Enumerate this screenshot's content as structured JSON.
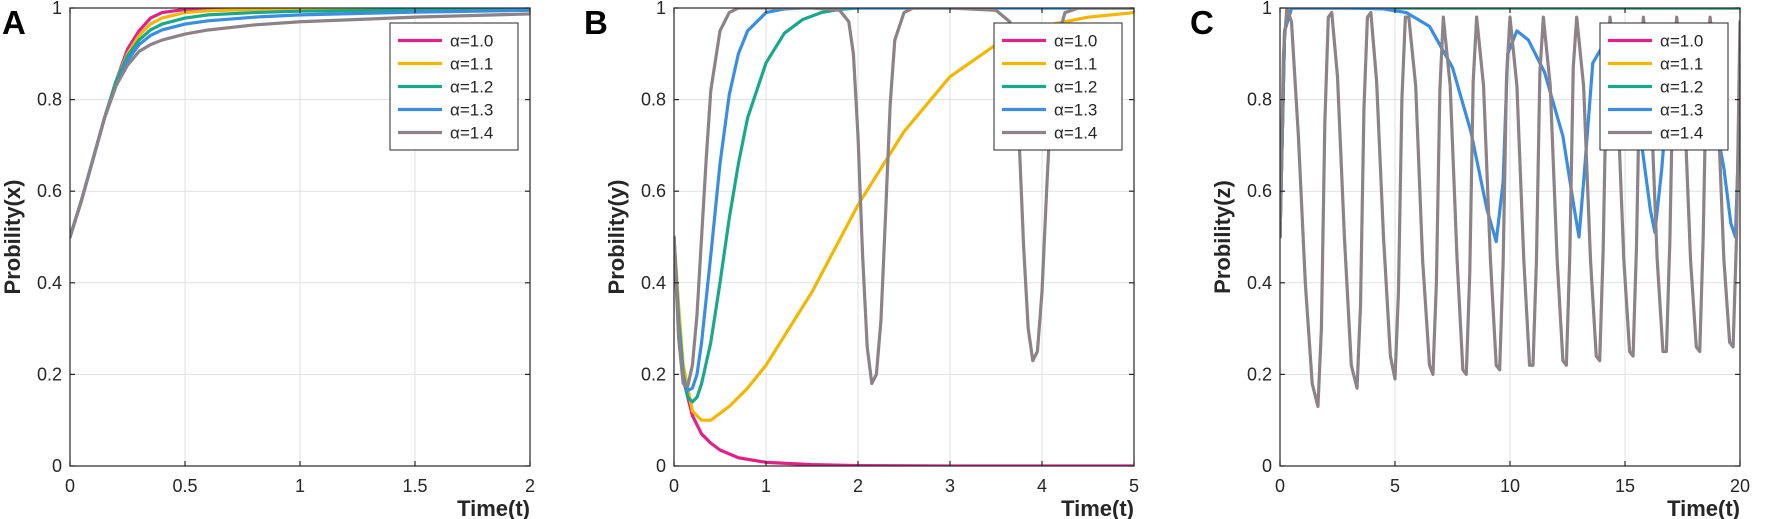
{
  "figure": {
    "letters": [
      "A",
      "B",
      "C"
    ]
  },
  "chart_data": [
    {
      "type": "line",
      "panel": "A",
      "xlabel": "Time(t)",
      "ylabel": "Probility(x)",
      "xlim": [
        0,
        2
      ],
      "ylim": [
        0,
        1
      ],
      "xticks": [
        0,
        0.5,
        1,
        1.5,
        2
      ],
      "xtick_labels": [
        "0",
        "0.5",
        "1",
        "1.5",
        "2"
      ],
      "yticks": [
        0,
        0.2,
        0.4,
        0.6,
        0.8,
        1
      ],
      "ytick_labels": [
        "0",
        "0.2",
        "0.4",
        "0.6",
        "0.8",
        "1"
      ],
      "grid": true,
      "legend_position": "top-right",
      "series": [
        {
          "name": "α=1.0",
          "color": "#e0218a",
          "x": [
            0,
            0.05,
            0.1,
            0.15,
            0.2,
            0.25,
            0.3,
            0.35,
            0.4,
            0.5,
            0.6,
            0.8,
            1.0,
            1.5,
            2.0
          ],
          "y": [
            0.5,
            0.58,
            0.67,
            0.76,
            0.84,
            0.91,
            0.95,
            0.978,
            0.99,
            0.997,
            0.999,
            1,
            1,
            1,
            1
          ]
        },
        {
          "name": "α=1.1",
          "color": "#f2b705",
          "x": [
            0,
            0.05,
            0.1,
            0.15,
            0.2,
            0.25,
            0.3,
            0.35,
            0.4,
            0.5,
            0.6,
            0.8,
            1.0,
            1.5,
            2.0
          ],
          "y": [
            0.5,
            0.58,
            0.67,
            0.76,
            0.84,
            0.9,
            0.94,
            0.965,
            0.978,
            0.99,
            0.994,
            0.997,
            0.998,
            0.999,
            1
          ]
        },
        {
          "name": "α=1.2",
          "color": "#1aa88c",
          "x": [
            0,
            0.05,
            0.1,
            0.15,
            0.2,
            0.25,
            0.3,
            0.35,
            0.4,
            0.5,
            0.6,
            0.8,
            1.0,
            1.5,
            2.0
          ],
          "y": [
            0.5,
            0.58,
            0.67,
            0.76,
            0.84,
            0.895,
            0.93,
            0.952,
            0.965,
            0.978,
            0.985,
            0.99,
            0.993,
            0.996,
            0.998
          ]
        },
        {
          "name": "α=1.3",
          "color": "#3a8ee0",
          "x": [
            0,
            0.05,
            0.1,
            0.15,
            0.2,
            0.25,
            0.3,
            0.35,
            0.4,
            0.5,
            0.6,
            0.8,
            1.0,
            1.5,
            2.0
          ],
          "y": [
            0.5,
            0.58,
            0.67,
            0.76,
            0.83,
            0.885,
            0.92,
            0.94,
            0.952,
            0.965,
            0.972,
            0.98,
            0.985,
            0.991,
            0.995
          ]
        },
        {
          "name": "α=1.4",
          "color": "#8c8287",
          "x": [
            0,
            0.05,
            0.1,
            0.15,
            0.2,
            0.25,
            0.3,
            0.35,
            0.4,
            0.5,
            0.6,
            0.8,
            1.0,
            1.5,
            2.0
          ],
          "y": [
            0.5,
            0.58,
            0.67,
            0.76,
            0.83,
            0.875,
            0.905,
            0.92,
            0.93,
            0.943,
            0.952,
            0.963,
            0.97,
            0.98,
            0.987
          ]
        }
      ]
    },
    {
      "type": "line",
      "panel": "B",
      "xlabel": "Time(t)",
      "ylabel": "Probility(y)",
      "xlim": [
        0,
        5
      ],
      "ylim": [
        0,
        1
      ],
      "xticks": [
        0,
        1,
        2,
        3,
        4,
        5
      ],
      "xtick_labels": [
        "0",
        "1",
        "2",
        "3",
        "4",
        "5"
      ],
      "yticks": [
        0,
        0.2,
        0.4,
        0.6,
        0.8,
        1
      ],
      "ytick_labels": [
        "0",
        "0.2",
        "0.4",
        "0.6",
        "0.8",
        "1"
      ],
      "grid": true,
      "legend_position": "top-right",
      "series": [
        {
          "name": "α=1.0",
          "color": "#e0218a",
          "x": [
            0,
            0.05,
            0.1,
            0.2,
            0.3,
            0.4,
            0.5,
            0.7,
            1.0,
            1.5,
            2.0,
            3.0,
            5.0
          ],
          "y": [
            0.5,
            0.3,
            0.19,
            0.11,
            0.07,
            0.05,
            0.035,
            0.018,
            0.008,
            0.003,
            0.001,
            0,
            0
          ]
        },
        {
          "name": "α=1.1",
          "color": "#f2b705",
          "x": [
            0,
            0.05,
            0.1,
            0.2,
            0.3,
            0.4,
            0.6,
            0.8,
            1.0,
            1.5,
            2.0,
            2.5,
            3.0,
            3.5,
            4.0,
            4.5,
            5.0
          ],
          "y": [
            0.5,
            0.35,
            0.22,
            0.12,
            0.1,
            0.1,
            0.13,
            0.17,
            0.22,
            0.38,
            0.57,
            0.73,
            0.85,
            0.92,
            0.96,
            0.98,
            0.99
          ]
        },
        {
          "name": "α=1.2",
          "color": "#1aa88c",
          "x": [
            0,
            0.05,
            0.1,
            0.15,
            0.2,
            0.25,
            0.3,
            0.4,
            0.5,
            0.6,
            0.7,
            0.8,
            1.0,
            1.2,
            1.4,
            1.6,
            1.8,
            2.0,
            3.0,
            5.0
          ],
          "y": [
            0.5,
            0.32,
            0.2,
            0.15,
            0.14,
            0.15,
            0.18,
            0.27,
            0.4,
            0.54,
            0.66,
            0.76,
            0.88,
            0.945,
            0.975,
            0.99,
            0.997,
            1,
            1,
            1
          ]
        },
        {
          "name": "α=1.3",
          "color": "#3a8ee0",
          "x": [
            0,
            0.05,
            0.1,
            0.15,
            0.2,
            0.25,
            0.3,
            0.4,
            0.5,
            0.6,
            0.7,
            0.8,
            1.0,
            1.2,
            1.4,
            2.0,
            3.0,
            5.0
          ],
          "y": [
            0.5,
            0.3,
            0.19,
            0.165,
            0.17,
            0.2,
            0.27,
            0.46,
            0.66,
            0.81,
            0.9,
            0.95,
            0.99,
            0.998,
            1,
            1,
            1,
            1
          ]
        },
        {
          "name": "α=1.4",
          "color": "#8c8287",
          "x": [
            0,
            0.05,
            0.1,
            0.15,
            0.2,
            0.25,
            0.3,
            0.35,
            0.4,
            0.5,
            0.6,
            0.7,
            0.8,
            0.9,
            1.0,
            1.5,
            1.8,
            1.9,
            1.95,
            2.0,
            2.05,
            2.1,
            2.15,
            2.2,
            2.25,
            2.3,
            2.35,
            2.4,
            2.5,
            2.6,
            3.0,
            3.5,
            3.65,
            3.7,
            3.75,
            3.8,
            3.85,
            3.9,
            3.95,
            4.0,
            4.05,
            4.1,
            4.15,
            4.25,
            4.4,
            5.0
          ],
          "y": [
            0.5,
            0.28,
            0.18,
            0.175,
            0.22,
            0.33,
            0.5,
            0.67,
            0.82,
            0.95,
            0.99,
            1,
            1,
            1,
            1,
            1,
            0.995,
            0.97,
            0.9,
            0.72,
            0.46,
            0.26,
            0.18,
            0.2,
            0.32,
            0.55,
            0.79,
            0.93,
            0.99,
            1,
            1,
            0.995,
            0.97,
            0.9,
            0.72,
            0.48,
            0.3,
            0.23,
            0.25,
            0.38,
            0.6,
            0.8,
            0.92,
            0.99,
            1,
            1
          ]
        }
      ]
    },
    {
      "type": "line",
      "panel": "C",
      "xlabel": "Time(t)",
      "ylabel": "Probility(z)",
      "xlim": [
        0,
        20
      ],
      "ylim": [
        0,
        1
      ],
      "xticks": [
        0,
        5,
        10,
        15,
        20
      ],
      "xtick_labels": [
        "0",
        "5",
        "10",
        "15",
        "20"
      ],
      "yticks": [
        0,
        0.2,
        0.4,
        0.6,
        0.8,
        1
      ],
      "ytick_labels": [
        "0",
        "0.2",
        "0.4",
        "0.6",
        "0.8",
        "1"
      ],
      "grid": true,
      "legend_position": "top-right",
      "series": [
        {
          "name": "α=1.0",
          "color": "#e0218a",
          "x": [
            0,
            0.2,
            0.5,
            20
          ],
          "y": [
            0.5,
            0.95,
            1,
            1
          ]
        },
        {
          "name": "α=1.1",
          "color": "#f2b705",
          "x": [
            0,
            0.2,
            0.5,
            20
          ],
          "y": [
            0.5,
            0.95,
            1,
            1
          ]
        },
        {
          "name": "α=1.2",
          "color": "#1aa88c",
          "x": [
            0,
            0.2,
            0.5,
            20
          ],
          "y": [
            0.5,
            0.95,
            1,
            1
          ]
        },
        {
          "name": "α=1.3",
          "color": "#3a8ee0",
          "x": [
            0,
            0.2,
            0.5,
            1,
            3,
            4.5,
            5.5,
            6.5,
            7.5,
            8.3,
            9.0,
            9.4,
            9.7,
            9.9,
            10.3,
            10.8,
            11.5,
            12.3,
            12.8,
            13.0,
            13.2,
            13.6,
            14.3,
            15.0,
            15.6,
            16.1,
            16.3,
            16.6,
            17.0,
            17.8,
            18.6,
            19.3,
            19.6,
            19.8,
            20
          ],
          "y": [
            0.5,
            0.95,
            1,
            1,
            1,
            0.998,
            0.99,
            0.96,
            0.87,
            0.73,
            0.56,
            0.49,
            0.62,
            0.9,
            0.95,
            0.93,
            0.86,
            0.72,
            0.56,
            0.5,
            0.62,
            0.88,
            0.94,
            0.9,
            0.75,
            0.56,
            0.51,
            0.65,
            0.9,
            0.93,
            0.84,
            0.65,
            0.53,
            0.5,
            0.8
          ]
        },
        {
          "name": "α=1.4",
          "color": "#8c8287",
          "x": [
            0,
            0.15,
            0.3,
            0.5,
            0.8,
            1.1,
            1.4,
            1.65,
            1.8,
            1.95,
            2.1,
            2.25,
            2.5,
            2.8,
            3.1,
            3.35,
            3.5,
            3.65,
            3.8,
            3.95,
            4.2,
            4.5,
            4.8,
            5.0,
            5.15,
            5.3,
            5.45,
            5.6,
            5.9,
            6.2,
            6.5,
            6.65,
            6.8,
            6.95,
            7.1,
            7.4,
            7.7,
            7.95,
            8.1,
            8.25,
            8.4,
            8.55,
            8.85,
            9.15,
            9.4,
            9.55,
            9.7,
            9.85,
            10.0,
            10.3,
            10.6,
            10.85,
            11.0,
            11.15,
            11.3,
            11.45,
            11.75,
            12.05,
            12.3,
            12.45,
            12.6,
            12.75,
            12.9,
            13.2,
            13.5,
            13.75,
            13.9,
            14.05,
            14.2,
            14.35,
            14.65,
            14.95,
            15.2,
            15.35,
            15.5,
            15.65,
            15.8,
            16.1,
            16.4,
            16.65,
            16.8,
            16.95,
            17.1,
            17.25,
            17.55,
            17.85,
            18.1,
            18.25,
            18.4,
            18.55,
            18.7,
            19.0,
            19.3,
            19.55,
            19.7,
            19.85,
            20.0
          ],
          "y": [
            0.5,
            0.9,
            1,
            0.97,
            0.72,
            0.4,
            0.18,
            0.13,
            0.3,
            0.75,
            0.98,
            0.99,
            0.85,
            0.5,
            0.22,
            0.17,
            0.35,
            0.78,
            0.98,
            0.99,
            0.84,
            0.5,
            0.24,
            0.19,
            0.38,
            0.8,
            0.98,
            0.98,
            0.83,
            0.45,
            0.22,
            0.2,
            0.4,
            0.82,
            0.98,
            0.83,
            0.45,
            0.21,
            0.2,
            0.42,
            0.84,
            0.98,
            0.83,
            0.45,
            0.22,
            0.21,
            0.44,
            0.85,
            0.98,
            0.83,
            0.45,
            0.22,
            0.22,
            0.45,
            0.86,
            0.98,
            0.83,
            0.45,
            0.23,
            0.22,
            0.46,
            0.87,
            0.98,
            0.83,
            0.45,
            0.24,
            0.23,
            0.47,
            0.87,
            0.98,
            0.83,
            0.45,
            0.25,
            0.24,
            0.48,
            0.88,
            0.98,
            0.83,
            0.45,
            0.25,
            0.25,
            0.49,
            0.88,
            0.98,
            0.83,
            0.45,
            0.26,
            0.25,
            0.5,
            0.89,
            0.98,
            0.83,
            0.45,
            0.27,
            0.26,
            0.5,
            0.97
          ]
        }
      ]
    }
  ]
}
